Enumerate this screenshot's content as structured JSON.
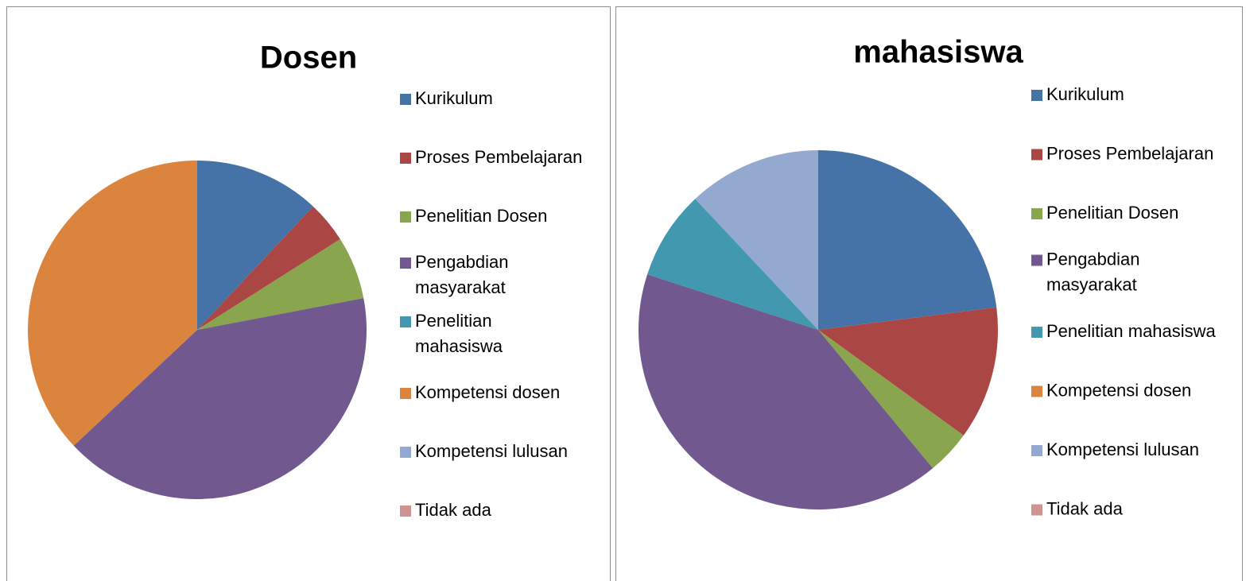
{
  "chart_data": [
    {
      "type": "pie",
      "title": "Dosen",
      "categories": [
        "Kurikulum",
        "Proses Pembelajaran",
        "Penelitian Dosen",
        "Pengabdian masyarakat",
        "Penelitian mahasiswa",
        "Kompetensi dosen",
        "Kompetensi lulusan",
        "Tidak ada"
      ],
      "values": [
        12,
        4,
        6,
        41,
        0,
        37,
        0,
        0
      ],
      "colors": [
        "#4572A7",
        "#AA4643",
        "#89A54E",
        "#71588F",
        "#4198AF",
        "#DB843D",
        "#93A9CF",
        "#D19392"
      ],
      "legend": "right"
    },
    {
      "type": "pie",
      "title": "mahasiswa",
      "categories": [
        "Kurikulum",
        "Proses Pembelajaran",
        "Penelitian Dosen",
        "Pengabdian masyarakat",
        "Penelitian mahasiswa",
        "Kompetensi dosen",
        "Kompetensi lulusan",
        "Tidak ada"
      ],
      "values": [
        23,
        12,
        4,
        41,
        8,
        0,
        12,
        0
      ],
      "colors": [
        "#4572A7",
        "#AA4643",
        "#89A54E",
        "#71588F",
        "#4198AF",
        "#DB843D",
        "#93A9CF",
        "#D19392"
      ],
      "legend": "right"
    }
  ]
}
